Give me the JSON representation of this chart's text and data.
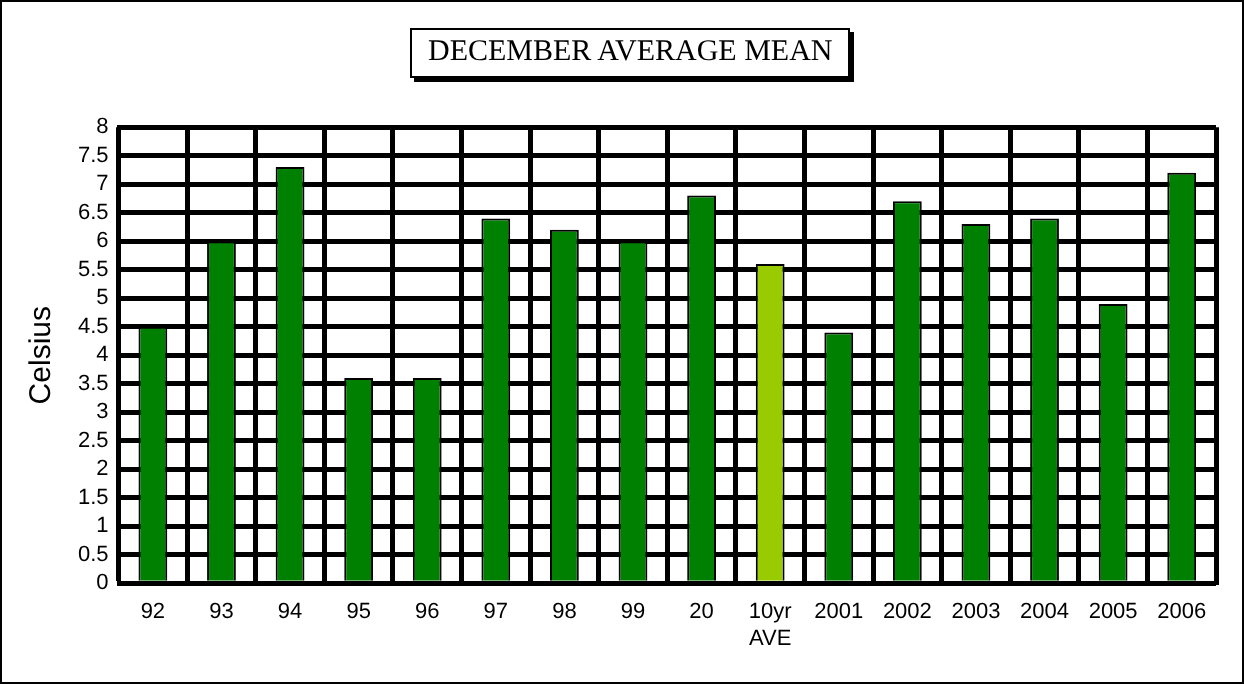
{
  "chart_data": {
    "type": "bar",
    "title": "DECEMBER AVERAGE MEAN",
    "ylabel": "Celsius",
    "categories": [
      "92",
      "93",
      "94",
      "95",
      "96",
      "97",
      "98",
      "99",
      "20",
      "10yr\nAVE",
      "2001",
      "2002",
      "2003",
      "2004",
      "2005",
      "2006"
    ],
    "values": [
      4.5,
      6.0,
      7.3,
      3.6,
      3.6,
      6.4,
      6.2,
      6.0,
      6.8,
      5.6,
      4.4,
      6.7,
      6.3,
      6.4,
      4.9,
      7.2
    ],
    "colors": [
      "#008000",
      "#008000",
      "#008000",
      "#008000",
      "#008000",
      "#008000",
      "#008000",
      "#008000",
      "#008000",
      "#99cc00",
      "#008000",
      "#008000",
      "#008000",
      "#008000",
      "#008000",
      "#008000"
    ],
    "ylim": [
      0,
      8
    ],
    "yticks": [
      0,
      0.5,
      1,
      1.5,
      2,
      2.5,
      3,
      3.5,
      4,
      4.5,
      5,
      5.5,
      6,
      6.5,
      7,
      7.5,
      8
    ],
    "grid": true,
    "legend": false
  }
}
